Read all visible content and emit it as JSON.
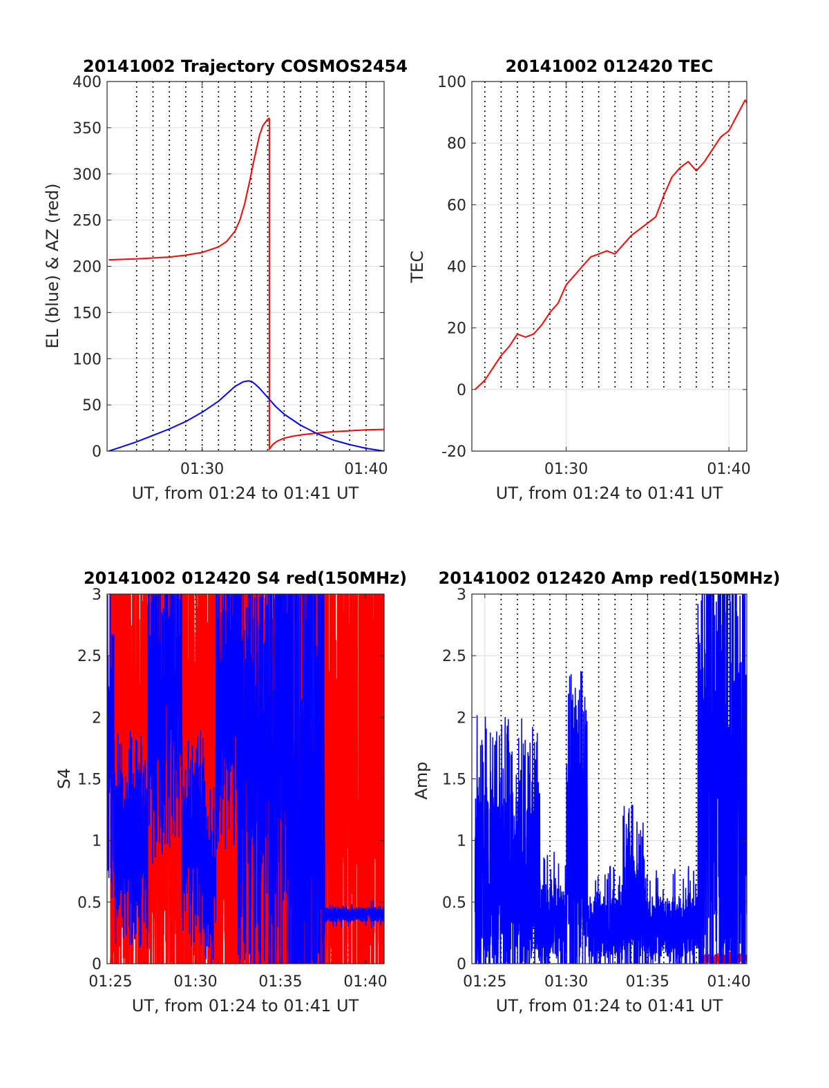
{
  "figure": {
    "background": "#ffffff",
    "grid_color": "#dcdcdc",
    "minute_line_color": "#000000"
  },
  "chart_data": [
    {
      "id": "trajectory",
      "type": "line",
      "title": "20141002 Trajectory COSMOS2454",
      "xlabel": "UT, from 01:24 to 01:41 UT",
      "ylabel": "EL (blue) & AZ (red)",
      "xlim": [
        84.2,
        101.1
      ],
      "ylim": [
        0,
        400
      ],
      "xticks": [
        90,
        100
      ],
      "xtick_labels": [
        "01:30",
        "01:40"
      ],
      "yticks": [
        0,
        50,
        100,
        150,
        200,
        250,
        300,
        350,
        400
      ],
      "ytick_labels": [
        "0",
        "50",
        "100",
        "150",
        "200",
        "250",
        "300",
        "350",
        "400"
      ],
      "minute_lines": [
        86,
        87,
        88,
        89,
        90,
        91,
        92,
        93,
        94,
        95,
        96,
        97,
        98,
        99,
        100
      ],
      "grid": true,
      "series": [
        {
          "label": "AZ",
          "color": "#ff0000",
          "x": [
            84.3,
            86,
            88,
            89,
            90,
            91,
            91.5,
            92,
            92.3,
            92.6,
            92.9,
            93.1,
            93.3,
            93.5,
            93.7,
            93.9,
            94.05,
            94.1,
            94.1,
            94.3,
            94.6,
            95,
            95.5,
            96,
            96.5,
            97,
            98,
            99,
            100,
            101.1
          ],
          "y": [
            207,
            208,
            210,
            212,
            215,
            221,
            227,
            238,
            250,
            268,
            292,
            310,
            326,
            342,
            352,
            357,
            360,
            360,
            2,
            7,
            11,
            14,
            16,
            17.5,
            18.5,
            19.5,
            21,
            22,
            23,
            23.5
          ]
        },
        {
          "label": "EL",
          "color": "#0000ff",
          "x": [
            84.3,
            85,
            86,
            87,
            88,
            89,
            90,
            90.5,
            91,
            91.5,
            92,
            92.5,
            92.8,
            93,
            93.2,
            93.5,
            94,
            94.5,
            95,
            96,
            97,
            98,
            99,
            100,
            101.1
          ],
          "y": [
            0,
            4,
            10,
            17,
            24,
            32,
            42,
            48,
            54,
            62,
            70,
            75,
            76,
            75.5,
            73,
            68,
            58,
            48,
            40,
            28,
            19,
            12,
            7,
            3,
            0
          ]
        }
      ]
    },
    {
      "id": "tec",
      "type": "line",
      "title": "20141002 012420 TEC",
      "xlabel": "UT, from 01:24 to 01:41 UT",
      "ylabel": "TEC",
      "xlim": [
        84.2,
        101.1
      ],
      "ylim": [
        -20,
        100
      ],
      "xticks": [
        90,
        100
      ],
      "xtick_labels": [
        "01:30",
        "01:40"
      ],
      "yticks": [
        -20,
        0,
        20,
        40,
        60,
        80,
        100
      ],
      "ytick_labels": [
        "-20",
        "0",
        "20",
        "40",
        "60",
        "80",
        "100"
      ],
      "minute_lines": [
        85,
        86,
        87,
        88,
        89,
        90,
        91,
        92,
        93,
        94,
        95,
        96,
        97,
        98,
        99,
        100
      ],
      "minute_lines_ymin": 0,
      "grid": true,
      "series": [
        {
          "label": "TEC",
          "color": "#ff0000",
          "x": [
            84.4,
            85,
            85.5,
            86,
            86.5,
            87,
            87.5,
            88,
            88.5,
            89,
            89.5,
            90,
            90.5,
            91,
            91.5,
            92,
            92.5,
            93,
            93.5,
            94,
            94.5,
            95,
            95.5,
            96,
            96.5,
            97,
            97.5,
            98,
            98.5,
            99,
            99.5,
            100,
            100.5,
            101,
            101.1
          ],
          "y": [
            0,
            3,
            7,
            11,
            14,
            18,
            17,
            18,
            21,
            25,
            28,
            34,
            37,
            40,
            43,
            44,
            45,
            44,
            47,
            50,
            52,
            54,
            56,
            63,
            69,
            72,
            74,
            71,
            74,
            78,
            82,
            84,
            89,
            94,
            93
          ]
        }
      ]
    },
    {
      "id": "s4",
      "type": "line",
      "title": "20141002 012420 S4 red(150MHz)",
      "xlabel": "UT, from 01:24 to 01:41 UT",
      "ylabel": "S4",
      "xlim": [
        84.8,
        101.1
      ],
      "ylim": [
        0,
        3
      ],
      "xticks": [
        85,
        90,
        95,
        100
      ],
      "xtick_labels": [
        "01:25",
        "01:30",
        "01:35",
        "01:40"
      ],
      "yticks": [
        0,
        0.5,
        1,
        1.5,
        2,
        2.5,
        3
      ],
      "ytick_labels": [
        "0",
        "0.5",
        "1",
        "1.5",
        "2",
        "2.5",
        "3"
      ],
      "minute_lines": [
        86,
        87,
        88,
        89,
        90,
        91,
        92,
        93,
        94,
        95,
        96,
        97,
        98,
        99,
        100
      ],
      "grid": true,
      "noise_series": [
        {
          "label": "S4 red",
          "color": "#ff0000",
          "seed": 17,
          "segments": [
            {
              "from": 85.0,
              "to": 87.8,
              "center": 1.6,
              "spread": 1.6,
              "spike": 0.45
            },
            {
              "from": 87.8,
              "to": 93.0,
              "center": 1.9,
              "spread": 1.5,
              "spike": 0.5
            },
            {
              "from": 93.0,
              "to": 98.0,
              "center": 1.6,
              "spread": 1.6,
              "spike": 0.5
            },
            {
              "from": 98.0,
              "to": 101.1,
              "center": 1.6,
              "spread": 1.6,
              "spike": 0.5
            }
          ]
        },
        {
          "label": "S4 blue",
          "color": "#0000ff",
          "seed": 53,
          "segments": [
            {
              "from": 84.8,
              "to": 85.2,
              "center": 2.1,
              "spread": 0.8,
              "spike": 0.25
            },
            {
              "from": 85.2,
              "to": 87.2,
              "center": 1.0,
              "spread": 0.45,
              "spike": 0.25
            },
            {
              "from": 87.2,
              "to": 89.2,
              "center": 2.2,
              "spread": 0.7,
              "spike": 0.3
            },
            {
              "from": 89.2,
              "to": 90.5,
              "center": 1.0,
              "spread": 0.45,
              "spike": 0.25
            },
            {
              "from": 90.5,
              "to": 91.2,
              "center": 0.7,
              "spread": 0.4,
              "spike": 0.2
            },
            {
              "from": 91.2,
              "to": 92.5,
              "center": 2.2,
              "spread": 0.7,
              "spike": 0.3
            },
            {
              "from": 92.5,
              "to": 94.0,
              "center": 1.6,
              "spread": 0.9,
              "spike": 0.3
            },
            {
              "from": 94.0,
              "to": 95.5,
              "center": 1.8,
              "spread": 1.2,
              "spike": 0.3
            },
            {
              "from": 95.5,
              "to": 97.6,
              "center": 1.6,
              "spread": 1.4,
              "spike": 0.35
            },
            {
              "from": 97.6,
              "to": 101.1,
              "center": 0.4,
              "spread": 0.06,
              "spike": 0.05
            }
          ]
        }
      ]
    },
    {
      "id": "amp",
      "type": "line",
      "title": "20141002 012420 Amp red(150MHz)",
      "xlabel": "UT, from 01:24 to 01:41 UT",
      "ylabel": "Amp",
      "xlim": [
        84.2,
        101.1
      ],
      "ylim": [
        0,
        3
      ],
      "xticks": [
        85,
        90,
        95,
        100
      ],
      "xtick_labels": [
        "01:25",
        "01:30",
        "01:35",
        "01:40"
      ],
      "yticks": [
        0,
        0.5,
        1,
        1.5,
        2,
        2.5,
        3
      ],
      "ytick_labels": [
        "0",
        "0.5",
        "1",
        "1.5",
        "2",
        "2.5",
        "3"
      ],
      "minute_lines": [
        86,
        87,
        88,
        89,
        90,
        91,
        92,
        93,
        94,
        95,
        96,
        97,
        98,
        99,
        100
      ],
      "grid": true,
      "noise_series": [
        {
          "label": "Amp red",
          "color": "#ff0000",
          "seed": 91,
          "segments": [
            {
              "from": 98.2,
              "to": 101.1,
              "center": 0.04,
              "spread": 0.04,
              "spike": 0.03
            }
          ]
        },
        {
          "label": "Amp blue",
          "color": "#0000ff",
          "seed": 29,
          "segments": [
            {
              "from": 84.4,
              "to": 88.4,
              "center": 0.75,
              "spread": 0.65,
              "spike": 0.25
            },
            {
              "from": 88.4,
              "to": 90.0,
              "center": 0.35,
              "spread": 0.3,
              "spike": 0.15
            },
            {
              "from": 90.0,
              "to": 91.3,
              "center": 0.9,
              "spread": 0.75,
              "spike": 0.3
            },
            {
              "from": 91.3,
              "to": 93.5,
              "center": 0.3,
              "spread": 0.25,
              "spike": 0.15
            },
            {
              "from": 93.5,
              "to": 94.8,
              "center": 0.5,
              "spread": 0.4,
              "spike": 0.2
            },
            {
              "from": 94.8,
              "to": 98.1,
              "center": 0.3,
              "spread": 0.25,
              "spike": 0.12
            },
            {
              "from": 98.1,
              "to": 101.1,
              "center": 1.3,
              "spread": 1.1,
              "spike": 0.3
            }
          ]
        }
      ]
    }
  ]
}
